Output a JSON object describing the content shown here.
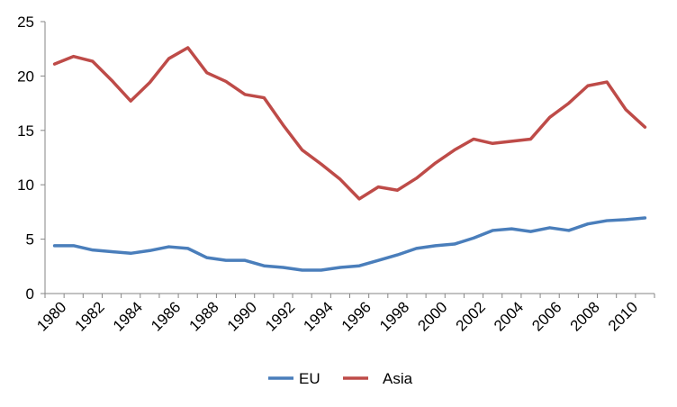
{
  "chart_data": {
    "type": "line",
    "x": [
      1980,
      1981,
      1982,
      1983,
      1984,
      1985,
      1986,
      1987,
      1988,
      1989,
      1990,
      1991,
      1992,
      1993,
      1994,
      1995,
      1996,
      1997,
      1998,
      1999,
      2000,
      2001,
      2002,
      2003,
      2004,
      2005,
      2006,
      2007,
      2008,
      2009,
      2010,
      2011
    ],
    "x_tick_labels": [
      "1980",
      "1982",
      "1984",
      "1986",
      "1988",
      "1990",
      "1992",
      "1994",
      "1996",
      "1998",
      "2000",
      "2002",
      "2004",
      "2006",
      "2008",
      "2010"
    ],
    "y_tick_labels": [
      "0",
      "5",
      "10",
      "15",
      "20",
      "25"
    ],
    "ylim": [
      0,
      25
    ],
    "grid": false,
    "legend_position": "bottom",
    "series": [
      {
        "name": "EU",
        "color": "#4a7ebb",
        "values": [
          4.4,
          4.4,
          4.0,
          3.85,
          3.7,
          3.95,
          4.3,
          4.15,
          3.3,
          3.05,
          3.05,
          2.55,
          2.4,
          2.15,
          2.15,
          2.4,
          2.55,
          3.05,
          3.55,
          4.15,
          4.4,
          4.55,
          5.1,
          5.8,
          5.95,
          5.7,
          6.05,
          5.8,
          6.4,
          6.7,
          6.8,
          6.95
        ]
      },
      {
        "name": "Asia",
        "color": "#be4b48",
        "values": [
          21.1,
          21.8,
          21.35,
          19.6,
          17.7,
          19.4,
          21.6,
          22.6,
          20.3,
          19.5,
          18.3,
          18.0,
          15.5,
          13.2,
          11.9,
          10.5,
          8.7,
          9.8,
          9.5,
          10.6,
          12.0,
          13.2,
          14.2,
          13.8,
          14.0,
          14.2,
          16.2,
          17.5,
          19.1,
          19.45,
          16.9,
          15.3
        ]
      }
    ]
  }
}
